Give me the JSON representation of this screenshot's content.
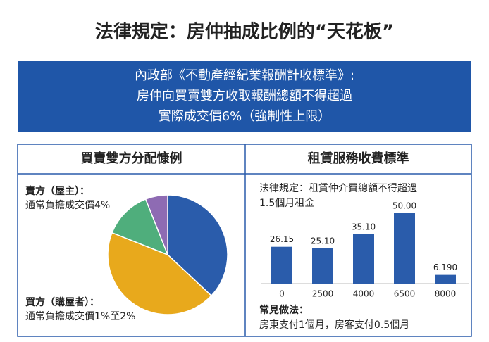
{
  "title": "法律規定：房仲抽成比例的“天花板”",
  "banner": [
    "內政部《不動產經紀業報酬計收標準》:",
    "房仲向買賣雙方收取報酬總額不得超過",
    "實際成交價6%（強制性上限）"
  ],
  "chart_data": [
    {
      "type": "pie",
      "title": "買賣雙方分配慷例",
      "values": [
        37,
        44,
        13,
        6
      ],
      "colors": [
        "#2a5cab",
        "#e8a91c",
        "#4fae7c",
        "#8e6bb3"
      ],
      "annotations": [
        "賣方（屋主）：",
        "通常負擔成交價4%",
        "買方（購屋者）：",
        "通常負擔成交價1%至2%"
      ]
    },
    {
      "type": "bar",
      "title": "租賃服務收費標準",
      "categories": [
        "0",
        "2500",
        "4000",
        "6500",
        "8000"
      ],
      "values": [
        26.15,
        25.1,
        35.1,
        50,
        6.19
      ],
      "value_labels": [
        "26.15",
        "25.10",
        "35.10",
        "50.00",
        "6.190"
      ],
      "color": "#2a5cab",
      "annotations": [
        "法律規定：租賃仲介費總額不得超過",
        "1.5個月租金",
        "常見做法：",
        "房東支付1個月，房客支付0.5個月"
      ]
    }
  ]
}
